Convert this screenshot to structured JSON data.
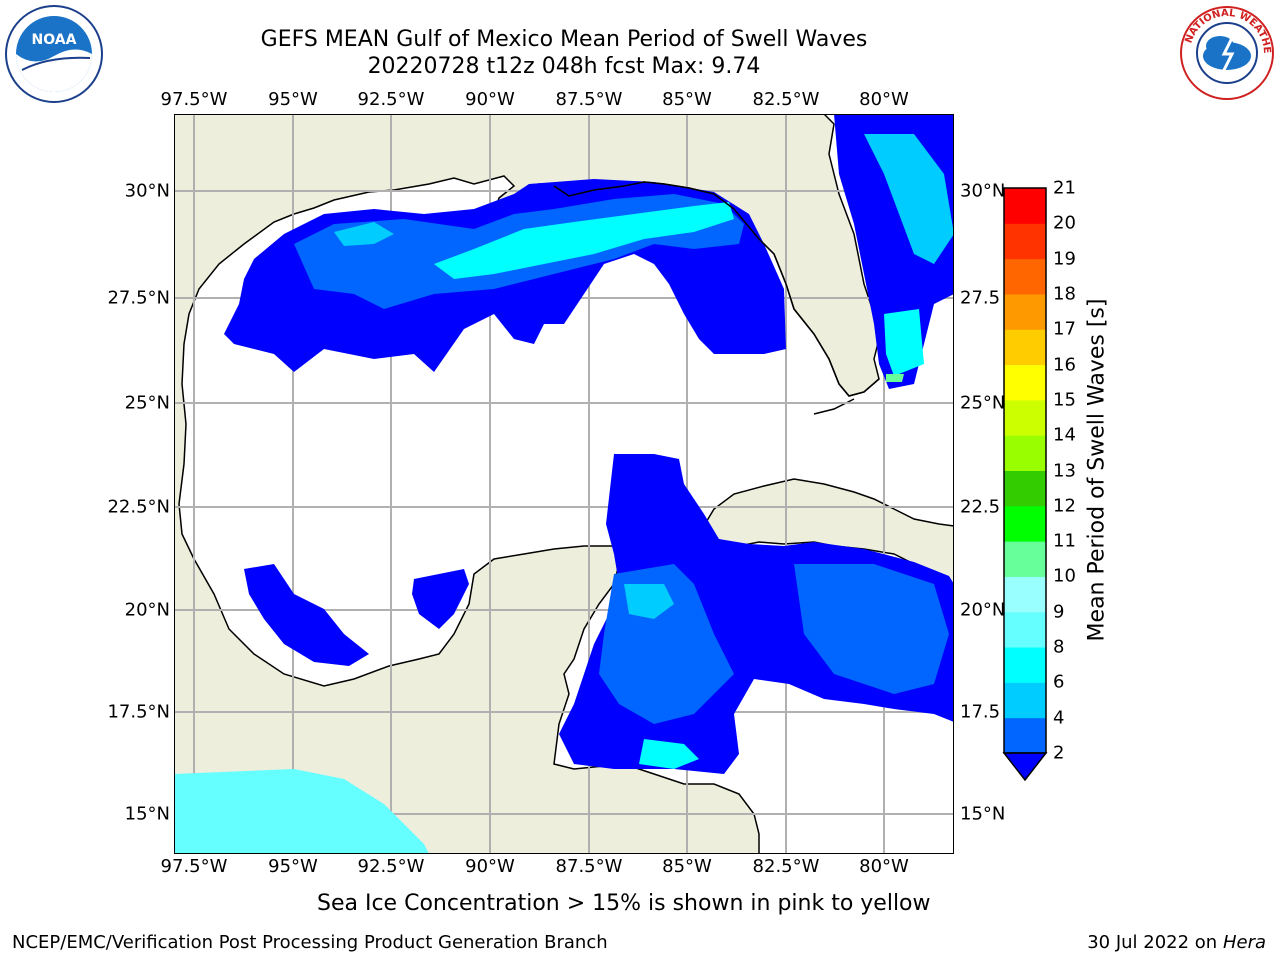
{
  "title": {
    "line1": "GEFS MEAN Gulf of Mexico Mean Period of Swell Waves",
    "line2": "20220728 t12z 048h fcst   Max: 9.74"
  },
  "logos": {
    "left": "NOAA",
    "right": "NATIONAL WEATHER SERVICE"
  },
  "lon_labels": [
    "97.5°W",
    "95°W",
    "92.5°W",
    "90°W",
    "87.5°W",
    "85°W",
    "82.5°W",
    "80°W"
  ],
  "lat_labels_left": [
    "30°N",
    "27.5°N",
    "25°N",
    "22.5°N",
    "20°N",
    "17.5°N",
    "15°N"
  ],
  "lat_labels_right": [
    "30°N",
    "27.5",
    "25°N",
    "22.5",
    "20°N",
    "17.5",
    "15°N"
  ],
  "colorbar": {
    "title": "Mean Period of Swell Waves [s]",
    "ticks": [
      "2",
      "4",
      "6",
      "8",
      "9",
      "10",
      "11",
      "12",
      "13",
      "14",
      "15",
      "16",
      "17",
      "18",
      "19",
      "20",
      "21"
    ],
    "colors": [
      "#0000ff",
      "#0066ff",
      "#00ccff",
      "#00ffff",
      "#66ffff",
      "#99ffff",
      "#66ff99",
      "#00ff00",
      "#33cc00",
      "#99ff00",
      "#ccff00",
      "#ffff00",
      "#ffcc00",
      "#ff9900",
      "#ff6600",
      "#ff3300",
      "#ff0000"
    ]
  },
  "map_colors": {
    "land": "#eeeedc",
    "ocean": "#ffffff",
    "grid": "#b0b0b0"
  },
  "note": "Sea Ice Concentration > 15% is shown in pink to yellow",
  "footer": {
    "left": "NCEP/EMC/Verification Post Processing Product Generation Branch",
    "date": "30 Jul 2022 on ",
    "machine": "Hera"
  }
}
